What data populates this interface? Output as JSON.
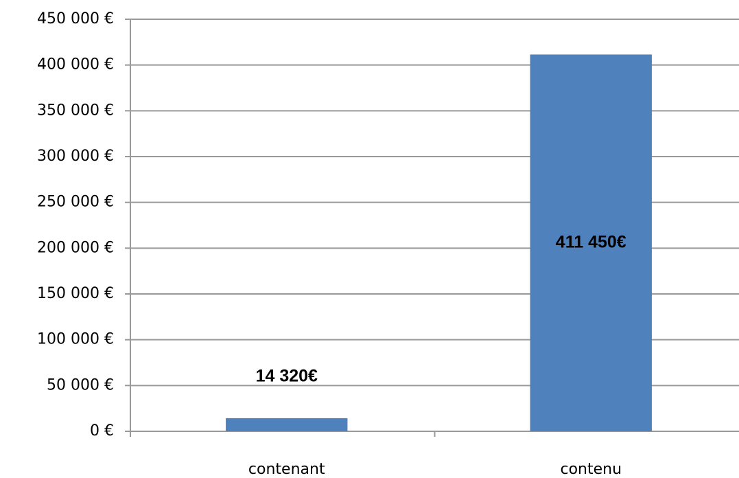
{
  "chart_data": {
    "type": "bar",
    "categories": [
      "contenant",
      "contenu"
    ],
    "values": [
      14320,
      411450
    ],
    "value_labels": [
      "14 320€",
      "411 450€"
    ],
    "color": "#4f81bd",
    "ylim": [
      0,
      450000
    ],
    "yticks": [
      {
        "value": 0,
        "label": "0 €"
      },
      {
        "value": 50000,
        "label": "50 000 €"
      },
      {
        "value": 100000,
        "label": "100 000 €"
      },
      {
        "value": 150000,
        "label": "150 000 €"
      },
      {
        "value": 200000,
        "label": "200 000 €"
      },
      {
        "value": 250000,
        "label": "250 000 €"
      },
      {
        "value": 300000,
        "label": "300 000 €"
      },
      {
        "value": 350000,
        "label": "350 000 €"
      },
      {
        "value": 400000,
        "label": "400 000 €"
      },
      {
        "value": 450000,
        "label": "450 000 €"
      }
    ],
    "grid": true
  }
}
